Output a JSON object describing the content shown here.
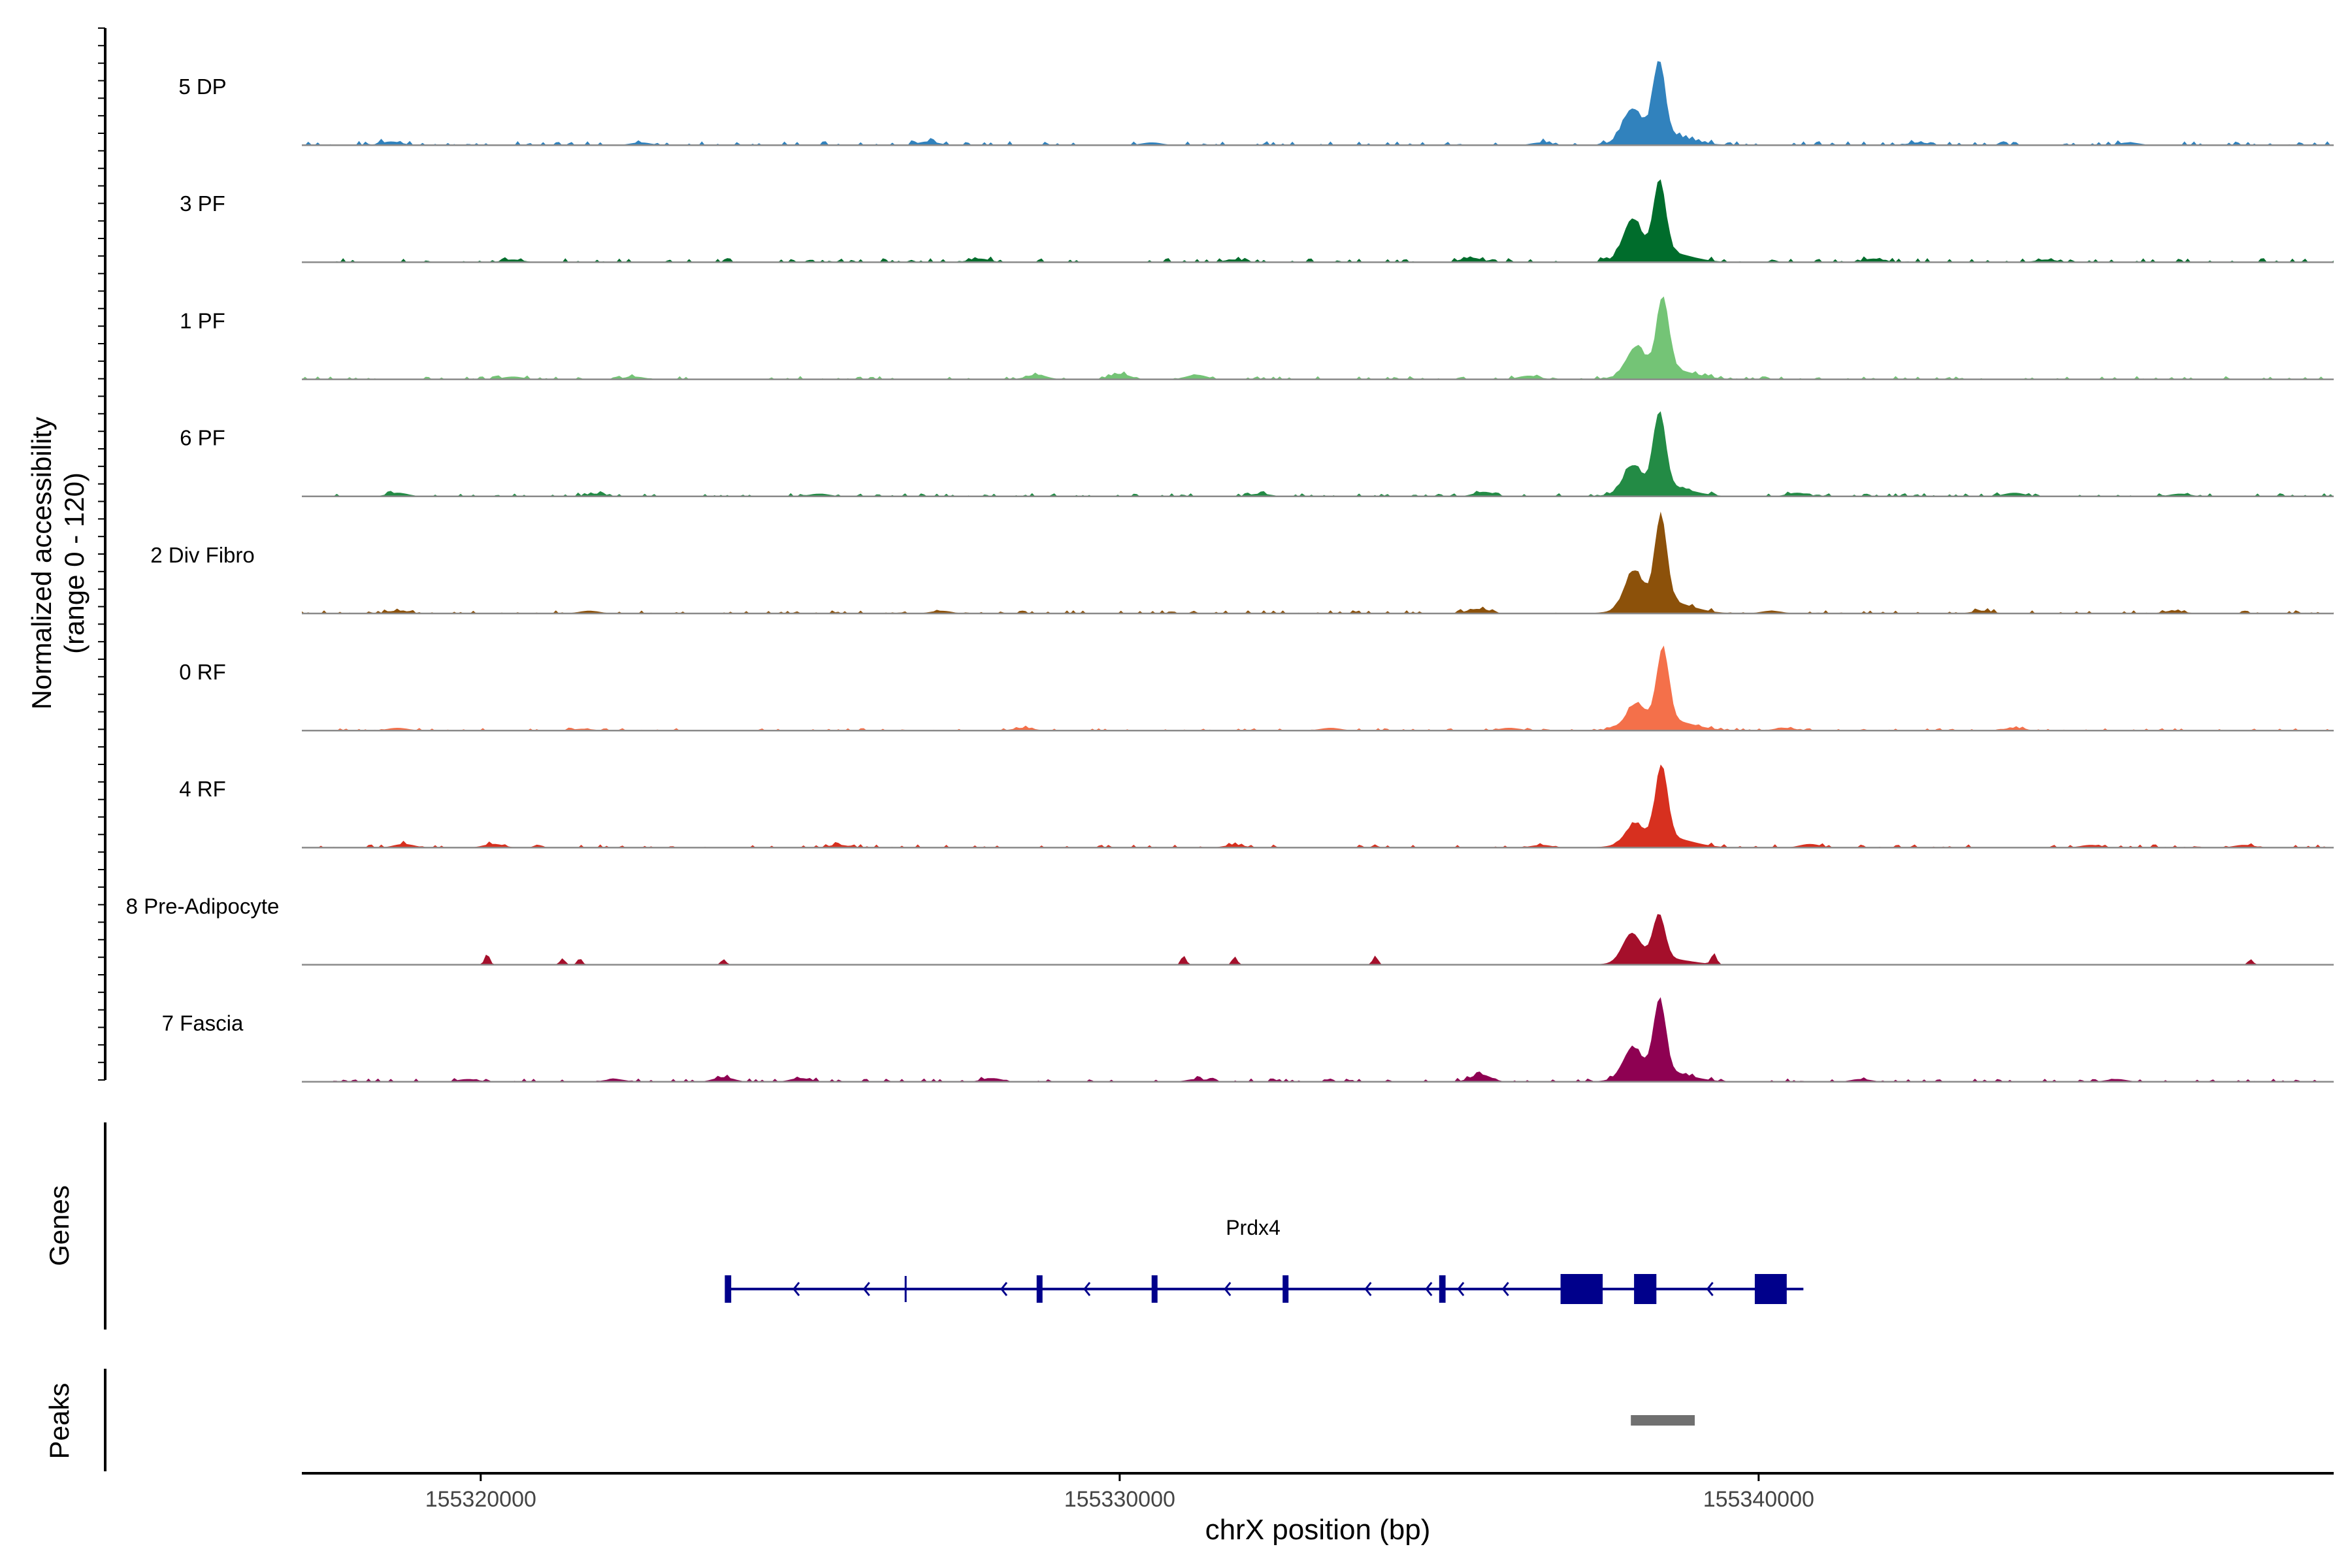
{
  "chart_data": {
    "type": "area",
    "title": "",
    "ylabel": "Normalized accessibility",
    "ylabel_range": "(range 0 - 120)",
    "y_range": [
      0,
      120
    ],
    "xlabel": "chrX position (bp)",
    "x_range": [
      155317200,
      155349000
    ],
    "x_ticks": [
      155320000,
      155330000,
      155340000
    ],
    "x_tick_labels": [
      "155320000",
      "155330000",
      "155340000"
    ],
    "track_labels": {
      "genes": "Genes",
      "peaks": "Peaks"
    },
    "tracks": [
      {
        "name": "5 DP",
        "color": "#3182bd",
        "peak_pos": 155338440,
        "peak_value": 80,
        "secondary_value": 32,
        "noise": 5,
        "sparse": false,
        "bumps": [
          [
            155318600,
            4
          ],
          [
            155322500,
            3
          ],
          [
            155327000,
            4
          ],
          [
            155330500,
            3
          ],
          [
            155336600,
            3
          ],
          [
            155342500,
            3
          ],
          [
            155345800,
            3
          ]
        ]
      },
      {
        "name": "3 PF",
        "color": "#006d2c",
        "peak_pos": 155338450,
        "peak_value": 78,
        "secondary_value": 40,
        "noise": 5,
        "sparse": false,
        "bumps": [
          [
            155320500,
            3
          ],
          [
            155327800,
            4
          ],
          [
            155331800,
            3
          ],
          [
            155335500,
            5
          ],
          [
            155341800,
            4
          ],
          [
            155344500,
            3
          ]
        ]
      },
      {
        "name": "1 PF",
        "color": "#74c476",
        "peak_pos": 155338500,
        "peak_value": 78,
        "secondary_value": 28,
        "noise": 4,
        "sparse": false,
        "bumps": [
          [
            155320500,
            3
          ],
          [
            155322400,
            3
          ],
          [
            155328700,
            5
          ],
          [
            155330000,
            6
          ],
          [
            155331200,
            5
          ],
          [
            155336400,
            4
          ]
        ]
      },
      {
        "name": "6 PF",
        "color": "#238b45",
        "peak_pos": 155338450,
        "peak_value": 80,
        "secondary_value": 26,
        "noise": 4,
        "sparse": false,
        "bumps": [
          [
            155318700,
            4
          ],
          [
            155321800,
            3
          ],
          [
            155325300,
            3
          ],
          [
            155332200,
            3
          ],
          [
            155335700,
            5
          ],
          [
            155340600,
            4
          ],
          [
            155344000,
            4
          ],
          [
            155346600,
            3
          ]
        ]
      },
      {
        "name": "2 Div Fibro",
        "color": "#8c510a",
        "peak_pos": 155338470,
        "peak_value": 92,
        "secondary_value": 38,
        "noise": 4,
        "sparse": false,
        "bumps": [
          [
            155318700,
            3
          ],
          [
            155321700,
            3
          ],
          [
            155327200,
            3
          ],
          [
            155335600,
            5
          ],
          [
            155340200,
            3
          ],
          [
            155343500,
            3
          ],
          [
            155346500,
            3
          ]
        ]
      },
      {
        "name": "0 RF",
        "color": "#f4704a",
        "peak_pos": 155338500,
        "peak_value": 78,
        "secondary_value": 22,
        "noise": 3,
        "sparse": false,
        "bumps": [
          [
            155318700,
            3
          ],
          [
            155321600,
            2
          ],
          [
            155328500,
            3
          ],
          [
            155333300,
            3
          ],
          [
            155336100,
            3
          ],
          [
            155340400,
            3
          ],
          [
            155344000,
            3
          ]
        ]
      },
      {
        "name": "4 RF",
        "color": "#d7301f",
        "peak_pos": 155338480,
        "peak_value": 78,
        "secondary_value": 18,
        "noise": 4,
        "sparse": false,
        "bumps": [
          [
            155318800,
            4
          ],
          [
            155320200,
            4
          ],
          [
            155325600,
            3
          ],
          [
            155331800,
            3
          ],
          [
            155336600,
            3
          ],
          [
            155340800,
            4
          ],
          [
            155345200,
            3
          ],
          [
            155347600,
            3
          ]
        ]
      },
      {
        "name": "8 Pre-Adipocyte",
        "color": "#a50f2b",
        "peak_pos": 155338440,
        "peak_value": 48,
        "secondary_value": 30,
        "noise": 0,
        "sparse": true,
        "bumps": [
          [
            155320100,
            12
          ],
          [
            155321280,
            7
          ],
          [
            155321550,
            7
          ],
          [
            155323800,
            6
          ],
          [
            155331000,
            10
          ],
          [
            155331800,
            9
          ],
          [
            155334000,
            10
          ],
          [
            155339300,
            12
          ],
          [
            155347700,
            6
          ]
        ]
      },
      {
        "name": "7 Fascia",
        "color": "#8e0152",
        "peak_pos": 155338450,
        "peak_value": 78,
        "secondary_value": 30,
        "noise": 4,
        "sparse": false,
        "bumps": [
          [
            155319800,
            3
          ],
          [
            155322100,
            3
          ],
          [
            155323800,
            5
          ],
          [
            155325000,
            4
          ],
          [
            155328000,
            4
          ],
          [
            155331200,
            3
          ],
          [
            155335650,
            8
          ],
          [
            155341600,
            3
          ],
          [
            155345600,
            3
          ]
        ]
      }
    ],
    "gene": {
      "name": "Prdx4",
      "color": "#00008b",
      "strand": "-",
      "start": 155323850,
      "end": 155340700,
      "exons": [
        [
          155323820,
          155323920
        ],
        [
          155328700,
          155328790
        ],
        [
          155330500,
          155330590
        ],
        [
          155332550,
          155332640
        ],
        [
          155335000,
          155335100
        ],
        [
          155336900,
          155337560
        ],
        [
          155338050,
          155338400
        ],
        [
          155339940,
          155340440
        ]
      ]
    },
    "peaks": [
      {
        "start": 155338000,
        "end": 155339000,
        "color": "#707070"
      }
    ]
  }
}
